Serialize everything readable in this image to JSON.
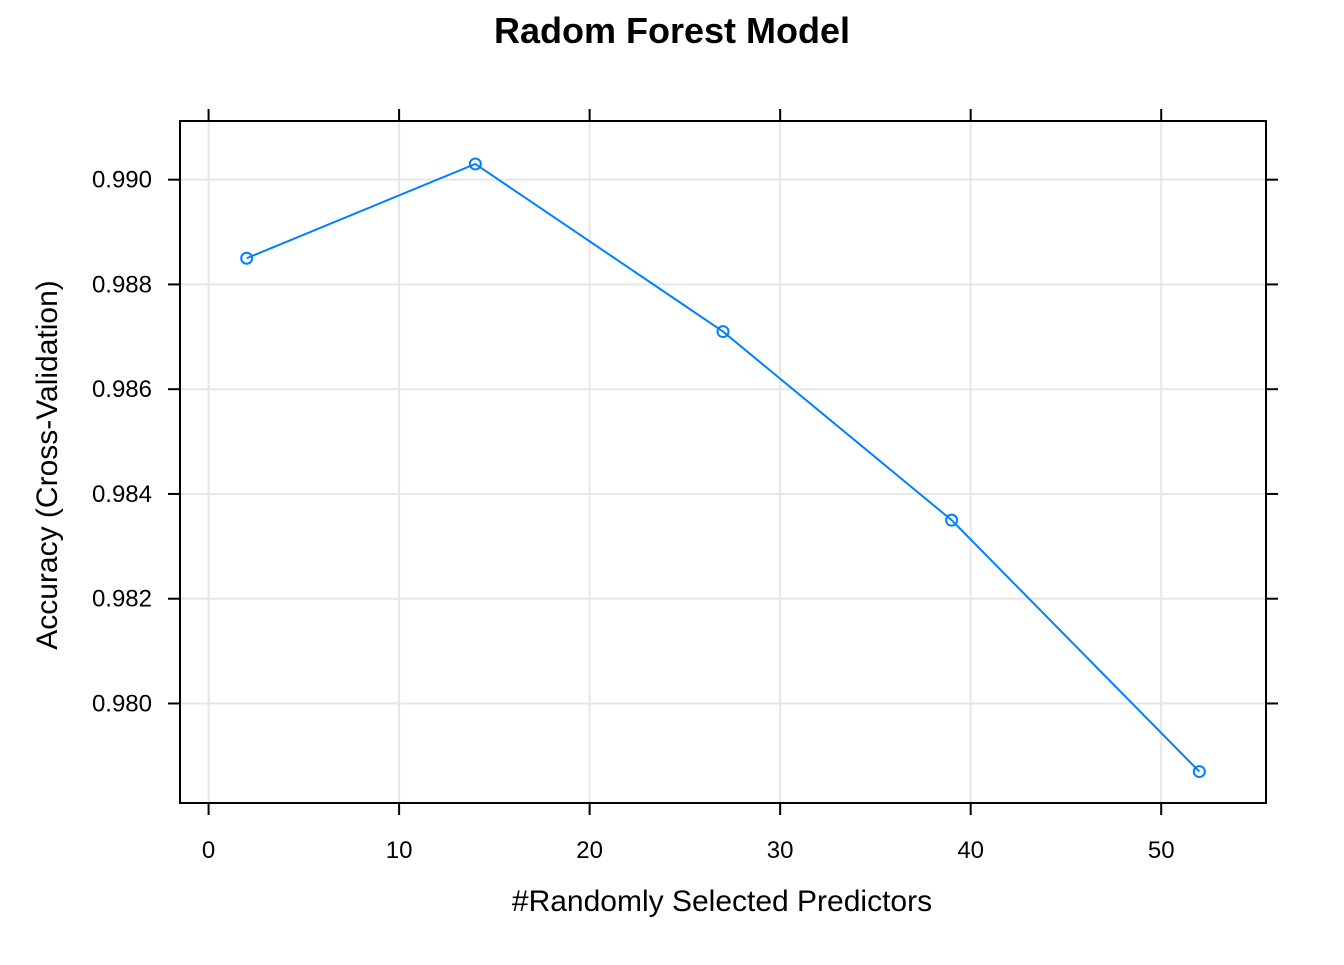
{
  "chart_data": {
    "type": "line",
    "title": "Radom Forest Model",
    "xlabel": "#Randomly Selected Predictors",
    "ylabel": "Accuracy (Cross-Validation)",
    "xlim": [
      -1.5,
      55.5
    ],
    "ylim": [
      0.9781,
      0.99112
    ],
    "x_ticks": [
      0,
      10,
      20,
      30,
      40,
      50
    ],
    "x_tick_labels": [
      "0",
      "10",
      "20",
      "30",
      "40",
      "50"
    ],
    "y_ticks": [
      0.98,
      0.982,
      0.984,
      0.986,
      0.988,
      0.99
    ],
    "y_tick_labels": [
      "0.980",
      "0.982",
      "0.984",
      "0.986",
      "0.988",
      "0.990"
    ],
    "grid": true,
    "legend": "none",
    "series": [
      {
        "x": [
          2,
          14,
          27,
          39,
          52
        ],
        "y": [
          0.9885,
          0.9903,
          0.9871,
          0.9835,
          0.9787
        ],
        "color": "#0080ff",
        "marker": "open-circle"
      }
    ]
  }
}
